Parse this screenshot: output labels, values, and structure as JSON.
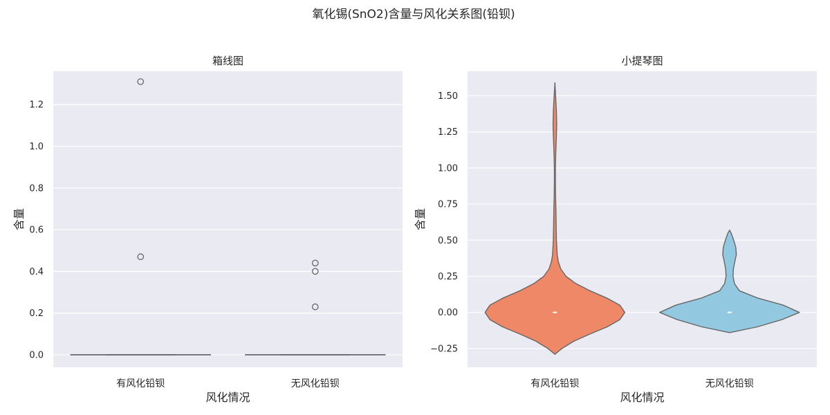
{
  "figure": {
    "title": "氧化锡(SnO2)含量与风化关系图(铅钡)"
  },
  "chart_data": [
    {
      "type": "box",
      "title": "箱线图",
      "xlabel": "风化情况",
      "ylabel": "含量",
      "categories": [
        "有风化铅钡",
        "无风化铅钡"
      ],
      "ylim": [
        -0.06,
        1.36
      ],
      "yticks": [
        0.0,
        0.2,
        0.4,
        0.6,
        0.8,
        1.0,
        1.2
      ],
      "ytick_labels": [
        "0.0",
        "0.2",
        "0.4",
        "0.6",
        "0.8",
        "1.0",
        "1.2"
      ],
      "boxes": [
        {
          "category": "有风化铅钡",
          "whisker_low": 0,
          "q1": 0,
          "median": 0,
          "q3": 0,
          "whisker_high": 0,
          "outliers": [
            0.47,
            1.31
          ]
        },
        {
          "category": "无风化铅钡",
          "whisker_low": 0,
          "q1": 0,
          "median": 0,
          "q3": 0,
          "whisker_high": 0,
          "outliers": [
            0.23,
            0.4,
            0.44
          ]
        }
      ],
      "grid": true,
      "colors": {
        "background": "#eaeaf2",
        "grid": "#ffffff",
        "line": "#666666"
      }
    },
    {
      "type": "violin",
      "title": "小提琴图",
      "xlabel": "风化情况",
      "ylabel": "含量",
      "categories": [
        "有风化铅钡",
        "无风化铅钡"
      ],
      "ylim": [
        -0.38,
        1.67
      ],
      "yticks": [
        -0.25,
        0.0,
        0.25,
        0.5,
        0.75,
        1.0,
        1.25,
        1.5
      ],
      "ytick_labels": [
        "−0.25",
        "0.00",
        "0.25",
        "0.50",
        "0.75",
        "1.00",
        "1.25",
        "1.50"
      ],
      "violins": [
        {
          "category": "有风化铅钡",
          "color": "#ee8866",
          "median": 0,
          "profile": [
            [
              -0.29,
              0.0
            ],
            [
              -0.25,
              0.1
            ],
            [
              -0.2,
              0.27
            ],
            [
              -0.15,
              0.5
            ],
            [
              -0.1,
              0.75
            ],
            [
              -0.05,
              0.93
            ],
            [
              0.0,
              1.0
            ],
            [
              0.05,
              0.93
            ],
            [
              0.1,
              0.74
            ],
            [
              0.15,
              0.5
            ],
            [
              0.2,
              0.3
            ],
            [
              0.25,
              0.16
            ],
            [
              0.3,
              0.085
            ],
            [
              0.35,
              0.05
            ],
            [
              0.4,
              0.033
            ],
            [
              0.5,
              0.022
            ],
            [
              0.6,
              0.018
            ],
            [
              0.7,
              0.015
            ],
            [
              0.8,
              0.01
            ],
            [
              0.9,
              0.007
            ],
            [
              1.0,
              0.007
            ],
            [
              1.1,
              0.012
            ],
            [
              1.2,
              0.02
            ],
            [
              1.3,
              0.026
            ],
            [
              1.4,
              0.021
            ],
            [
              1.5,
              0.01
            ],
            [
              1.55,
              0.004
            ],
            [
              1.59,
              0.0
            ]
          ]
        },
        {
          "category": "无风化铅钡",
          "color": "#92c9e0",
          "median": 0,
          "profile": [
            [
              -0.14,
              0.0
            ],
            [
              -0.1,
              0.4
            ],
            [
              -0.05,
              0.75
            ],
            [
              0.0,
              1.0
            ],
            [
              0.05,
              0.77
            ],
            [
              0.1,
              0.4
            ],
            [
              0.15,
              0.14
            ],
            [
              0.2,
              0.07
            ],
            [
              0.25,
              0.05
            ],
            [
              0.3,
              0.055
            ],
            [
              0.35,
              0.075
            ],
            [
              0.4,
              0.098
            ],
            [
              0.45,
              0.09
            ],
            [
              0.5,
              0.06
            ],
            [
              0.55,
              0.022
            ],
            [
              0.57,
              0.0
            ]
          ]
        }
      ],
      "grid": true,
      "colors": {
        "background": "#eaeaf2",
        "grid": "#ffffff",
        "line": "#666666"
      }
    }
  ]
}
